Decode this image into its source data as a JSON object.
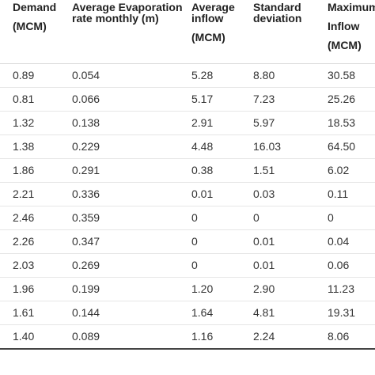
{
  "headers": {
    "demand": {
      "line1": "Demand",
      "line2": "(MCM)"
    },
    "evaporation": {
      "line1": "Average Evaporation",
      "line2": "rate monthly (m)"
    },
    "inflow": {
      "line1": "Average",
      "line2": "inflow",
      "line3": "(MCM)"
    },
    "std": {
      "line1": "Standard",
      "line2": "deviation"
    },
    "maximum": {
      "line1": "Maximum",
      "line2": "Inflow",
      "line3": "(MCM)"
    }
  },
  "rows": [
    [
      "0.89",
      "0.054",
      "5.28",
      "8.80",
      "30.58"
    ],
    [
      "0.81",
      "0.066",
      "5.17",
      "7.23",
      "25.26"
    ],
    [
      "1.32",
      "0.138",
      "2.91",
      "5.97",
      "18.53"
    ],
    [
      "1.38",
      "0.229",
      "4.48",
      "16.03",
      "64.50"
    ],
    [
      "1.86",
      "0.291",
      "0.38",
      "1.51",
      "6.02"
    ],
    [
      "2.21",
      "0.336",
      "0.01",
      "0.03",
      "0.11"
    ],
    [
      "2.46",
      "0.359",
      "0",
      "0",
      "0"
    ],
    [
      "2.26",
      "0.347",
      "0",
      "0.01",
      "0.04"
    ],
    [
      "2.03",
      "0.269",
      "0",
      "0.01",
      "0.06"
    ],
    [
      "1.96",
      "0.199",
      "1.20",
      "2.90",
      "11.23"
    ],
    [
      "1.61",
      "0.144",
      "1.64",
      "4.81",
      "19.31"
    ],
    [
      "1.40",
      "0.089",
      "1.16",
      "2.24",
      "8.06"
    ]
  ]
}
